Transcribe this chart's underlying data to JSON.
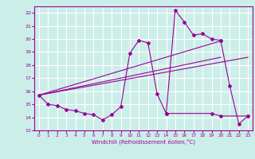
{
  "xlabel": "Windchill (Refroidissement éolien,°C)",
  "background_color": "#cceee8",
  "grid_color": "#ffffff",
  "line_color": "#990099",
  "xlim": [
    -0.5,
    23.5
  ],
  "ylim": [
    13,
    22.5
  ],
  "yticks": [
    13,
    14,
    15,
    16,
    17,
    18,
    19,
    20,
    21,
    22
  ],
  "xticks": [
    0,
    1,
    2,
    3,
    4,
    5,
    6,
    7,
    8,
    9,
    10,
    11,
    12,
    13,
    14,
    15,
    16,
    17,
    18,
    19,
    20,
    21,
    22,
    23
  ],
  "series1": [
    [
      0,
      15.7
    ],
    [
      1,
      15.0
    ],
    [
      2,
      14.9
    ],
    [
      3,
      14.6
    ],
    [
      4,
      14.5
    ],
    [
      5,
      14.3
    ],
    [
      6,
      14.2
    ],
    [
      7,
      13.8
    ],
    [
      8,
      14.2
    ],
    [
      9,
      14.8
    ],
    [
      10,
      18.9
    ],
    [
      11,
      19.9
    ],
    [
      12,
      19.7
    ],
    [
      13,
      15.8
    ],
    [
      14,
      14.3
    ],
    [
      15,
      22.2
    ],
    [
      16,
      21.3
    ],
    [
      17,
      20.3
    ],
    [
      18,
      20.4
    ],
    [
      19,
      20.0
    ],
    [
      20,
      19.9
    ]
  ],
  "series2": [
    [
      14,
      14.3
    ],
    [
      19,
      14.3
    ],
    [
      20,
      14.1
    ],
    [
      23,
      14.1
    ]
  ],
  "line_trend1": [
    [
      0,
      15.7
    ],
    [
      23,
      18.6
    ]
  ],
  "line_trend2": [
    [
      0,
      15.7
    ],
    [
      20,
      19.85
    ]
  ],
  "line_trend3": [
    [
      0,
      15.7
    ],
    [
      20,
      18.6
    ]
  ],
  "seg_drop": [
    [
      20,
      19.9
    ],
    [
      21,
      16.4
    ],
    [
      22,
      13.5
    ],
    [
      23,
      14.1
    ]
  ]
}
